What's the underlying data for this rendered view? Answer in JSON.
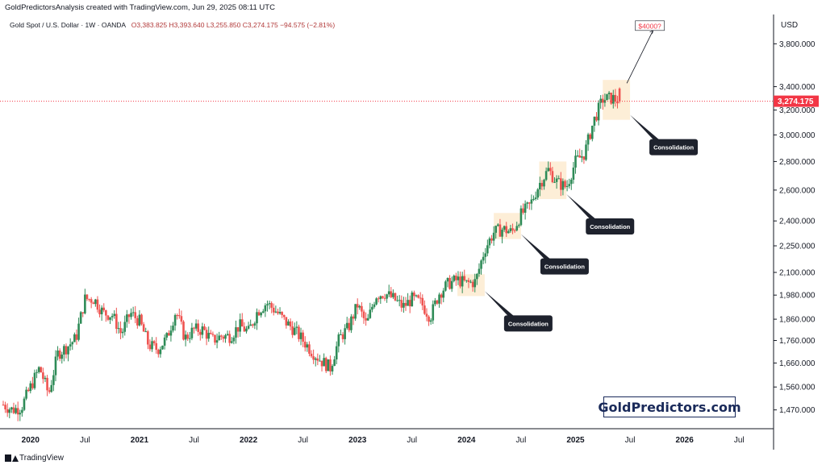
{
  "header": {
    "author_line": "GoldPredictorsAnalysis created with TradingView.com, Jun 29, 2025 08:11 UTC"
  },
  "symbol_bar": {
    "symbol": "Gold Spot / U.S. Dollar · 1W · OANDA",
    "open": "O3,383.825",
    "high": "H3,393.640",
    "low": "L3,255.850",
    "close": "C3,274.175",
    "change": "−94.575 (−2.81%)"
  },
  "price_axis": {
    "currency": "USD",
    "labels": [
      "3,800.000",
      "3,400.000",
      "3,200.000",
      "3,000.000",
      "2,800.000",
      "2,600.000",
      "2,400.000",
      "2,250.000",
      "2,100.000",
      "1,980.000",
      "1,860.000",
      "1,760.000",
      "1,660.000",
      "1,560.000",
      "1,470.000"
    ],
    "last_price": "3,274.175",
    "last_price_color": "#f23645"
  },
  "time_axis": {
    "labels": [
      {
        "text": "2020",
        "bold": true
      },
      {
        "text": "Jul",
        "bold": false
      },
      {
        "text": "2021",
        "bold": true
      },
      {
        "text": "Jul",
        "bold": false
      },
      {
        "text": "2022",
        "bold": true
      },
      {
        "text": "Jul",
        "bold": false
      },
      {
        "text": "2023",
        "bold": true
      },
      {
        "text": "Jul",
        "bold": false
      },
      {
        "text": "2024",
        "bold": true
      },
      {
        "text": "Jul",
        "bold": false
      },
      {
        "text": "2025",
        "bold": true
      },
      {
        "text": "Jul",
        "bold": false
      },
      {
        "text": "2026",
        "bold": true
      },
      {
        "text": "Jul",
        "bold": false
      }
    ]
  },
  "annotations": {
    "target_label": "$4000?",
    "target_color": "#f23645",
    "consolidation_labels": [
      "Consolidation",
      "Consolidation",
      "Consolidation",
      "Consolidation"
    ],
    "box_color": "#fdebd0",
    "callout_color": "#1e222d"
  },
  "brand": "GoldPredictors.com",
  "footer": {
    "brand": "TradingView"
  },
  "colors": {
    "up": "#26a69a",
    "up_body": "#2e8b57",
    "down": "#ef5350"
  },
  "chart_data": {
    "type": "candlestick",
    "title": "Gold Spot / U.S. Dollar · 1W · OANDA",
    "y_scale": "log",
    "ylim": [
      1400,
      4100
    ],
    "x_range": [
      "2019-10",
      "2026-10"
    ],
    "grid": false,
    "legend": "none",
    "price_series": {
      "name": "Gold Spot / U.S. Dollar",
      "points": [
        [
          "2019-10",
          1490
        ],
        [
          "2019-11",
          1470
        ],
        [
          "2019-12",
          1480
        ],
        [
          "2020-01",
          1560
        ],
        [
          "2020-02",
          1640
        ],
        [
          "2020-03",
          1530
        ],
        [
          "2020-04",
          1700
        ],
        [
          "2020-05",
          1730
        ],
        [
          "2020-06",
          1770
        ],
        [
          "2020-07",
          1960
        ],
        [
          "2020-08",
          1960
        ],
        [
          "2020-09",
          1890
        ],
        [
          "2020-10",
          1880
        ],
        [
          "2020-11",
          1790
        ],
        [
          "2020-12",
          1890
        ],
        [
          "2021-01",
          1850
        ],
        [
          "2021-02",
          1740
        ],
        [
          "2021-03",
          1720
        ],
        [
          "2021-04",
          1770
        ],
        [
          "2021-05",
          1900
        ],
        [
          "2021-06",
          1770
        ],
        [
          "2021-07",
          1810
        ],
        [
          "2021-08",
          1810
        ],
        [
          "2021-09",
          1760
        ],
        [
          "2021-10",
          1780
        ],
        [
          "2021-11",
          1780
        ],
        [
          "2021-12",
          1830
        ],
        [
          "2022-01",
          1800
        ],
        [
          "2022-02",
          1900
        ],
        [
          "2022-03",
          1940
        ],
        [
          "2022-04",
          1900
        ],
        [
          "2022-05",
          1850
        ],
        [
          "2022-06",
          1810
        ],
        [
          "2022-07",
          1760
        ],
        [
          "2022-08",
          1710
        ],
        [
          "2022-09",
          1670
        ],
        [
          "2022-10",
          1640
        ],
        [
          "2022-11",
          1770
        ],
        [
          "2022-12",
          1820
        ],
        [
          "2023-01",
          1930
        ],
        [
          "2023-02",
          1830
        ],
        [
          "2023-03",
          1980
        ],
        [
          "2023-04",
          1990
        ],
        [
          "2023-05",
          1960
        ],
        [
          "2023-06",
          1920
        ],
        [
          "2023-07",
          1960
        ],
        [
          "2023-08",
          1940
        ],
        [
          "2023-09",
          1870
        ],
        [
          "2023-10",
          1990
        ],
        [
          "2023-11",
          2040
        ],
        [
          "2023-12",
          2060
        ],
        [
          "2024-01",
          2040
        ],
        [
          "2024-02",
          2050
        ],
        [
          "2024-03",
          2230
        ],
        [
          "2024-04",
          2330
        ],
        [
          "2024-05",
          2350
        ],
        [
          "2024-06",
          2330
        ],
        [
          "2024-07",
          2440
        ],
        [
          "2024-08",
          2500
        ],
        [
          "2024-09",
          2640
        ],
        [
          "2024-10",
          2740
        ],
        [
          "2024-11",
          2650
        ],
        [
          "2024-12",
          2620
        ],
        [
          "2025-01",
          2800
        ],
        [
          "2025-02",
          2860
        ],
        [
          "2025-03",
          3110
        ],
        [
          "2025-04",
          3290
        ],
        [
          "2025-05",
          3300
        ],
        [
          "2025-06",
          3274.175
        ]
      ]
    },
    "consolidation_zones": [
      {
        "label": "Consolidation",
        "from": "2023-12",
        "to": "2024-03",
        "low": 1975,
        "high": 2090
      },
      {
        "label": "Consolidation",
        "from": "2024-04",
        "to": "2024-07",
        "low": 2290,
        "high": 2450
      },
      {
        "label": "Consolidation",
        "from": "2024-09",
        "to": "2024-12",
        "low": 2540,
        "high": 2800
      },
      {
        "label": "Consolidation",
        "from": "2025-04",
        "to": "2025-07",
        "low": 3120,
        "high": 3460
      }
    ],
    "target": {
      "label": "$4000?",
      "value": 4000
    },
    "last_price": 3274.175
  }
}
